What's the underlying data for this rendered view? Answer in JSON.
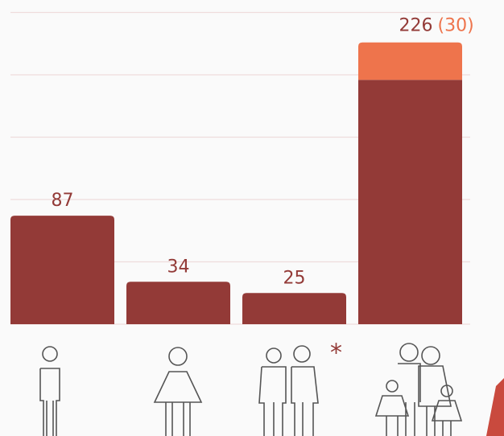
{
  "chart_data": {
    "type": "bar",
    "categories": [
      null,
      null,
      null,
      null
    ],
    "series": [
      {
        "color": "#933a37",
        "values": [
          87,
          34,
          25,
          196
        ]
      },
      {
        "color": "#ee744c",
        "values": [
          null,
          null,
          null,
          30
        ],
        "value_labels": [
          null,
          null,
          null,
          "(30)"
        ]
      }
    ],
    "stack_total": 226,
    "stacked": true,
    "ylim": [
      0,
      260
    ],
    "yticks": [
      0,
      50,
      100,
      150,
      200,
      250
    ],
    "grid": true
  }
}
